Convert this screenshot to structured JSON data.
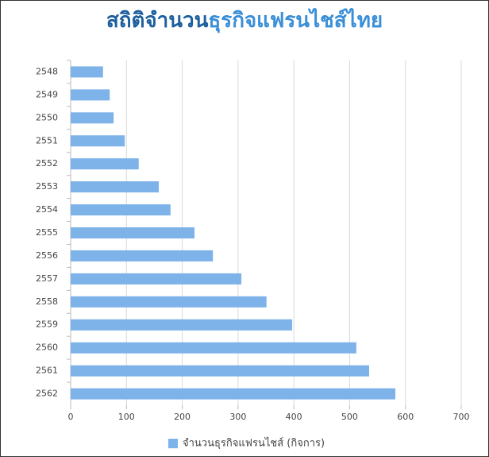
{
  "chart_data": {
    "type": "hbar",
    "title": [
      "สถิติจำนวน",
      "ธุรกิจแฟรนไชส์ไทย"
    ],
    "title_colors": [
      "#1e5fa0",
      "#3a8fd8"
    ],
    "categories": [
      "2548",
      "2549",
      "2550",
      "2551",
      "2552",
      "2553",
      "2554",
      "2555",
      "2556",
      "2557",
      "2558",
      "2559",
      "2560",
      "2561",
      "2562"
    ],
    "series": [
      {
        "name": "จำนวนธุรกิจแฟรนไชส์ (กิจการ)",
        "color": "#7eb3ea",
        "values": [
          58,
          70,
          77,
          97,
          122,
          158,
          179,
          222,
          255,
          306,
          351,
          397,
          512,
          535,
          582
        ]
      }
    ],
    "xlim": [
      0,
      700
    ],
    "xticks": [
      0,
      100,
      200,
      300,
      400,
      500,
      600,
      700
    ],
    "grid": true
  }
}
